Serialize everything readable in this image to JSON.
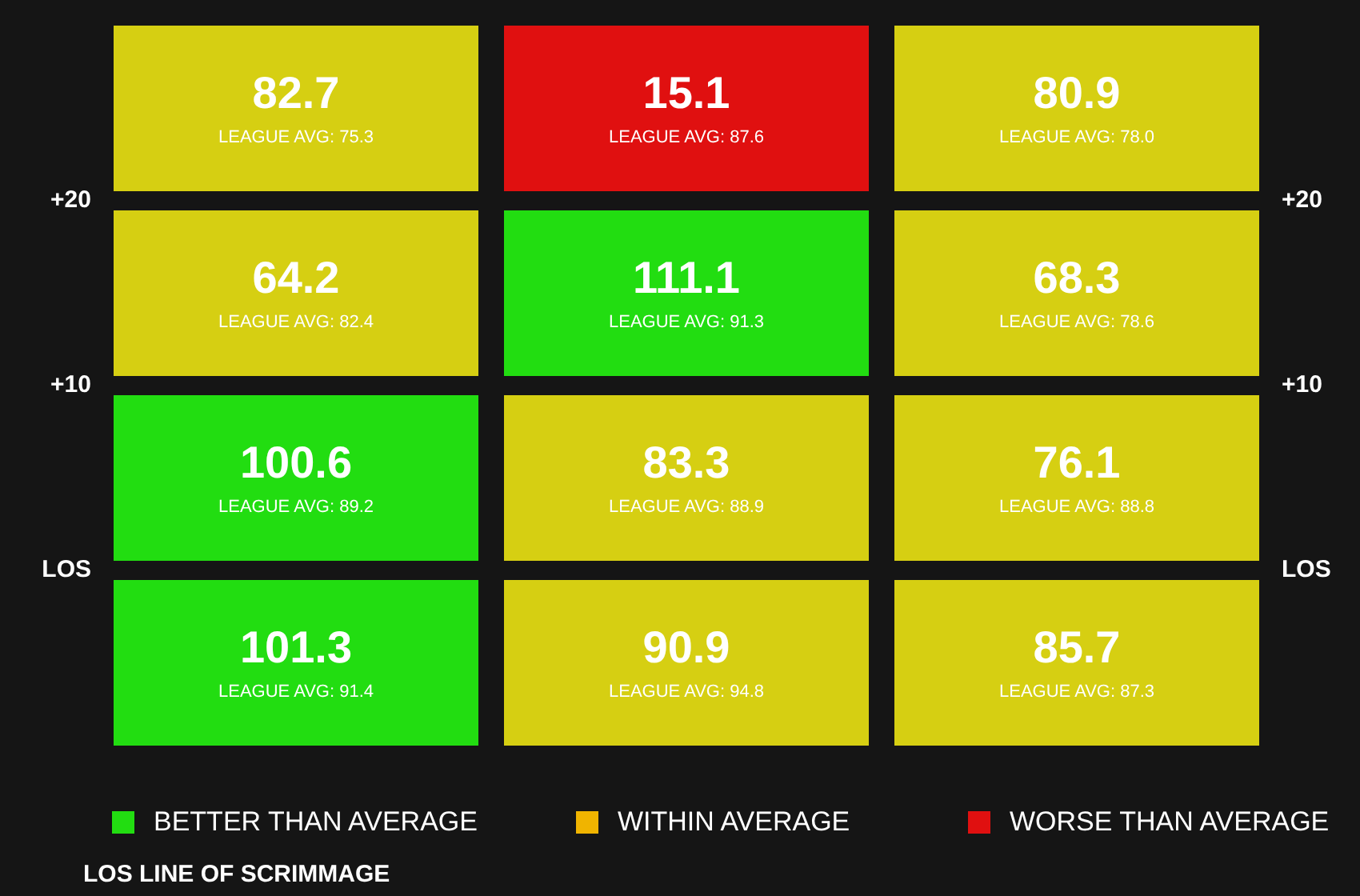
{
  "chart_data": {
    "type": "heatmap",
    "categories": [
      null,
      null,
      null
    ],
    "y_categories": [
      null,
      null,
      null,
      null
    ],
    "cells": [
      [
        82.7,
        15.1,
        80.9
      ],
      [
        64.2,
        111.1,
        68.3
      ],
      [
        100.6,
        83.3,
        76.1
      ],
      [
        101.3,
        90.9,
        85.7
      ]
    ],
    "data_labels": true,
    "colors": [
      "#d6cf12",
      "#e01010",
      "#d6cf12",
      "#d6cf12",
      "#22dd11",
      "#d6cf12",
      "#22dd11",
      "#d6cf12",
      "#d6cf12",
      "#22dd11",
      "#d6cf12",
      "#d6cf12"
    ],
    "annotations": [
      "+20",
      "+10",
      "LOS",
      "LEAGUE AVG: 75.3",
      "LEAGUE AVG: 87.6",
      "LEAGUE AVG: 78.0",
      "LEAGUE AVG: 82.4",
      "LEAGUE AVG: 91.3",
      "LEAGUE AVG: 78.6",
      "LEAGUE AVG: 89.2",
      "LEAGUE AVG: 88.9",
      "LEAGUE AVG: 88.8",
      "LEAGUE AVG: 91.4",
      "LEAGUE AVG: 94.8",
      "LEAGUE AVG: 87.3",
      "BETTER THAN AVERAGE",
      "WITHIN AVERAGE",
      "WORSE THAN AVERAGE",
      "LOS  LINE OF SCRIMMAGE"
    ]
  }
}
